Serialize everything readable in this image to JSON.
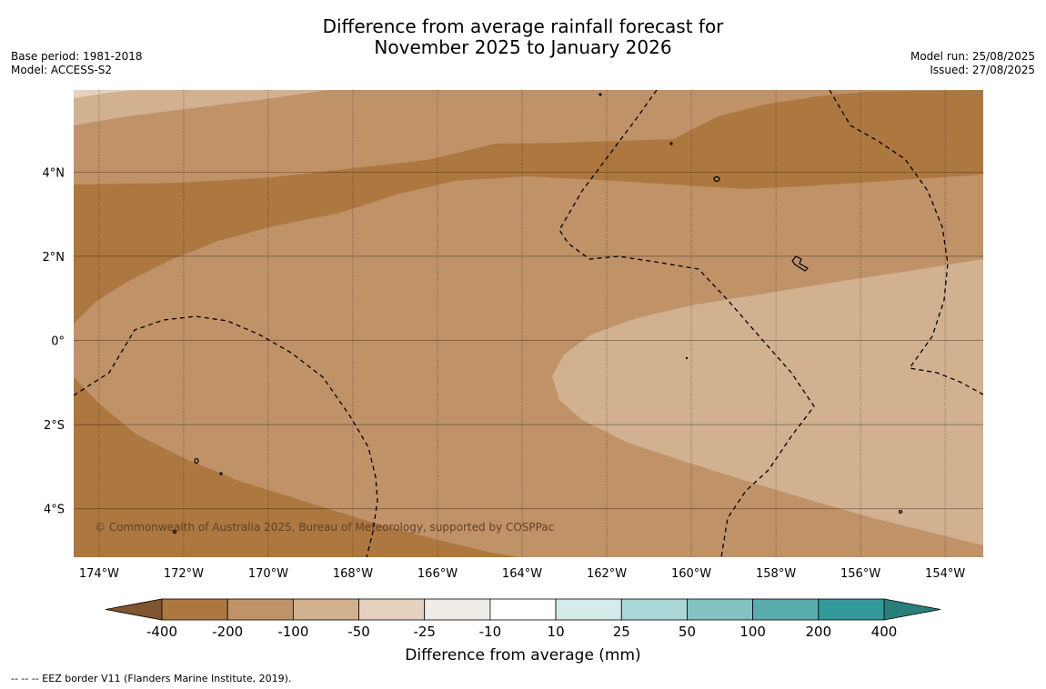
{
  "title": {
    "line1": "Difference from average rainfall forecast for",
    "line2": "November 2025 to January 2026"
  },
  "meta_left": {
    "base_period": "Base period: 1981-2018",
    "model": "Model: ACCESS-S2"
  },
  "meta_right": {
    "model_run": "Model run: 25/08/2025",
    "issued": "Issued: 27/08/2025"
  },
  "map": {
    "lon_range": [
      -174.6,
      -153.1
    ],
    "lat_range": [
      -5.15,
      5.95
    ],
    "lon_ticks": [
      {
        "value": -174,
        "label": "174°W"
      },
      {
        "value": -172,
        "label": "172°W"
      },
      {
        "value": -170,
        "label": "170°W"
      },
      {
        "value": -168,
        "label": "168°W"
      },
      {
        "value": -166,
        "label": "166°W"
      },
      {
        "value": -164,
        "label": "164°W"
      },
      {
        "value": -162,
        "label": "162°W"
      },
      {
        "value": -160,
        "label": "160°W"
      },
      {
        "value": -158,
        "label": "158°W"
      },
      {
        "value": -156,
        "label": "156°W"
      },
      {
        "value": -154,
        "label": "154°W"
      }
    ],
    "lat_ticks": [
      {
        "value": 4,
        "label": "4°N"
      },
      {
        "value": 2,
        "label": "2°N"
      },
      {
        "value": 0,
        "label": "0°"
      },
      {
        "value": -2,
        "label": "2°S"
      },
      {
        "value": -4,
        "label": "4°S"
      }
    ],
    "copyright": "© Commonwealth of Australia 2025, Bureau of Meteorology, supported by COSPPac",
    "colors": {
      "below_200": "#ad7740",
      "between_100_200": "#c09268",
      "between_50_100": "#d1b190",
      "between_25_50": "#e4d1bf"
    }
  },
  "legend": {
    "label": "Difference from average (mm)",
    "ticks": [
      "-400",
      "-200",
      "-100",
      "-50",
      "-25",
      "-10",
      "10",
      "25",
      "50",
      "100",
      "200",
      "400"
    ],
    "under_color": "#7f5430",
    "over_color": "#2a7f7a",
    "colors": [
      "#ad7740",
      "#c09268",
      "#d1b190",
      "#e4d1bf",
      "#f0ede8",
      "#ffffff",
      "#d4ebea",
      "#abd7d7",
      "#83c2c2",
      "#5aadad",
      "#339998"
    ]
  },
  "footer": "--  --  -- EEZ border V11 (Flanders Marine Institute, 2019)."
}
